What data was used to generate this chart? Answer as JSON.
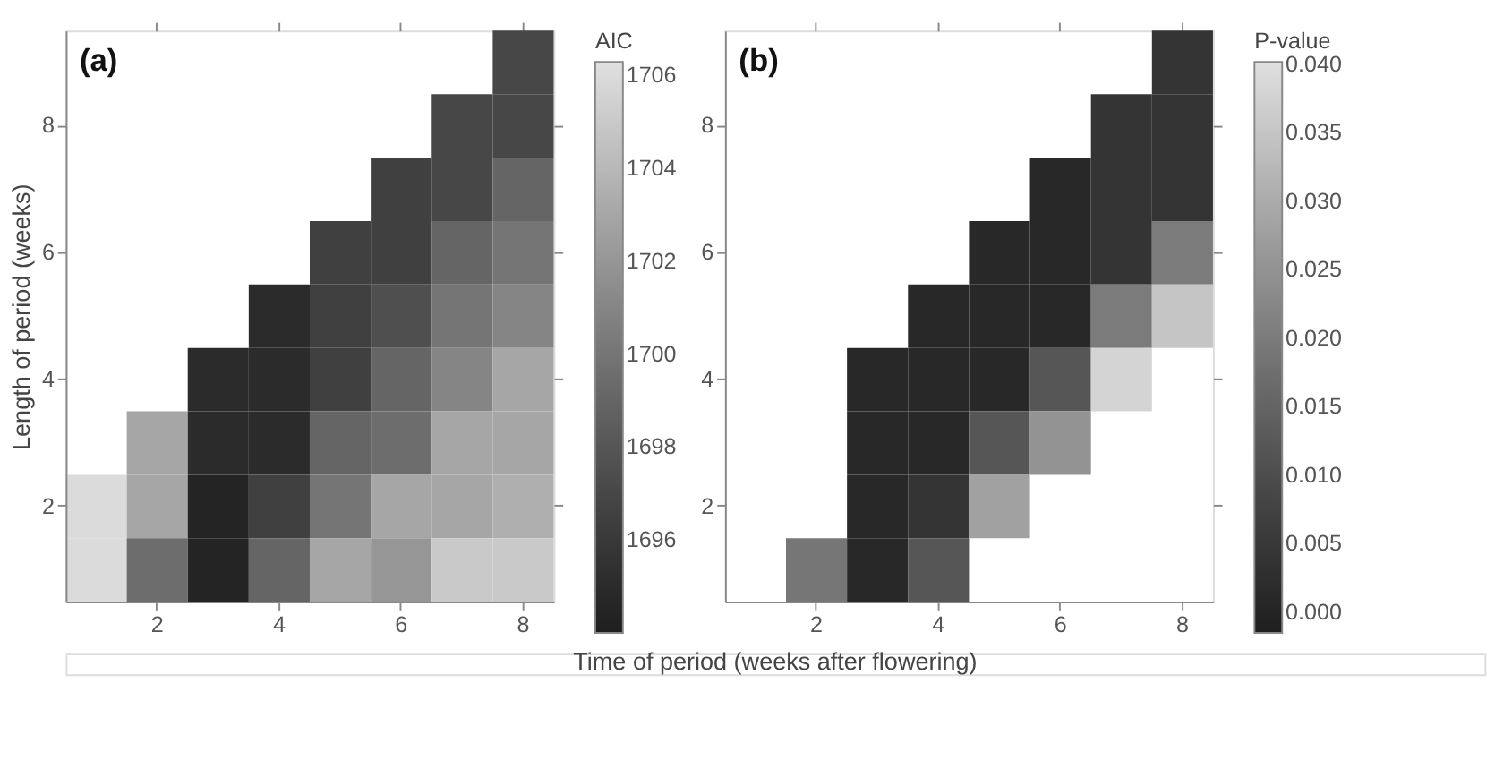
{
  "chart_data": [
    {
      "type": "heatmap",
      "title": "(a)",
      "xlabel": "Time of period (weeks after flowering)",
      "ylabel": "Length of period (weeks)",
      "clabel": "AIC",
      "categories": [
        null,
        "2",
        null,
        "4",
        null,
        "6",
        null,
        "8"
      ],
      "y_categories": [
        null,
        "8",
        null,
        "6",
        null,
        "4",
        null,
        "2",
        null
      ],
      "cells": [
        [
          null,
          null,
          null,
          null,
          null,
          null,
          null,
          1697
        ],
        [
          null,
          null,
          null,
          null,
          null,
          null,
          1697,
          1697
        ],
        [
          null,
          null,
          null,
          null,
          null,
          1696.5,
          1697,
          1699
        ],
        [
          null,
          null,
          null,
          null,
          1696.5,
          1696.5,
          1699,
          1700
        ],
        [
          null,
          null,
          null,
          1695,
          1696.5,
          1697.5,
          1700,
          1701
        ],
        [
          null,
          null,
          1695,
          1695,
          1696.5,
          1699,
          1701,
          1703
        ],
        [
          null,
          1703,
          1695,
          1695,
          1699,
          1699.5,
          1703,
          1703
        ],
        [
          1706,
          1703,
          1694.5,
          1696.5,
          1700,
          1703,
          1703,
          1703.5
        ],
        [
          1706,
          1699.5,
          1694.5,
          1699,
          1703,
          1702,
          1705,
          1705
        ]
      ],
      "clim": [
        1694,
        1706.3
      ],
      "cticks": [
        1696,
        1698,
        1700,
        1702,
        1704,
        1706
      ]
    },
    {
      "type": "heatmap",
      "title": "(b)",
      "clabel": "P-value",
      "categories": [
        null,
        "2",
        null,
        "4",
        null,
        "6",
        null,
        "8"
      ],
      "y_categories": [
        null,
        "8",
        null,
        "6",
        null,
        "4",
        null,
        "2",
        null
      ],
      "cells": [
        [
          null,
          null,
          null,
          null,
          null,
          null,
          null,
          0.004
        ],
        [
          null,
          null,
          null,
          null,
          null,
          null,
          0.004,
          0.004
        ],
        [
          null,
          null,
          null,
          null,
          null,
          0.001,
          0.004,
          0.004
        ],
        [
          null,
          null,
          null,
          null,
          0.001,
          0.001,
          0.004,
          0.02
        ],
        [
          null,
          null,
          null,
          0.001,
          0.001,
          0.001,
          0.02,
          0.035
        ],
        [
          null,
          null,
          0.001,
          0.001,
          0.001,
          0.012,
          0.038,
          null
        ],
        [
          null,
          null,
          0.001,
          0.001,
          0.012,
          0.025,
          null,
          null
        ],
        [
          null,
          null,
          0.001,
          0.004,
          0.028,
          null,
          null,
          null
        ],
        [
          null,
          0.019,
          0.001,
          0.012,
          null,
          null,
          null,
          null
        ]
      ],
      "clim": [
        -0.0015,
        0.0402
      ],
      "cticks": [
        {
          "value": 0,
          "label": "0.000"
        },
        {
          "value": 0.005,
          "label": "0.005"
        },
        {
          "value": 0.01,
          "label": "0.010"
        },
        {
          "value": 0.015,
          "label": "0.015"
        },
        {
          "value": 0.02,
          "label": "0.020"
        },
        {
          "value": 0.025,
          "label": "0.025"
        },
        {
          "value": 0.03,
          "label": "0.030"
        },
        {
          "value": 0.035,
          "label": "0.035"
        },
        {
          "value": 0.04,
          "label": "0.040"
        }
      ]
    }
  ]
}
